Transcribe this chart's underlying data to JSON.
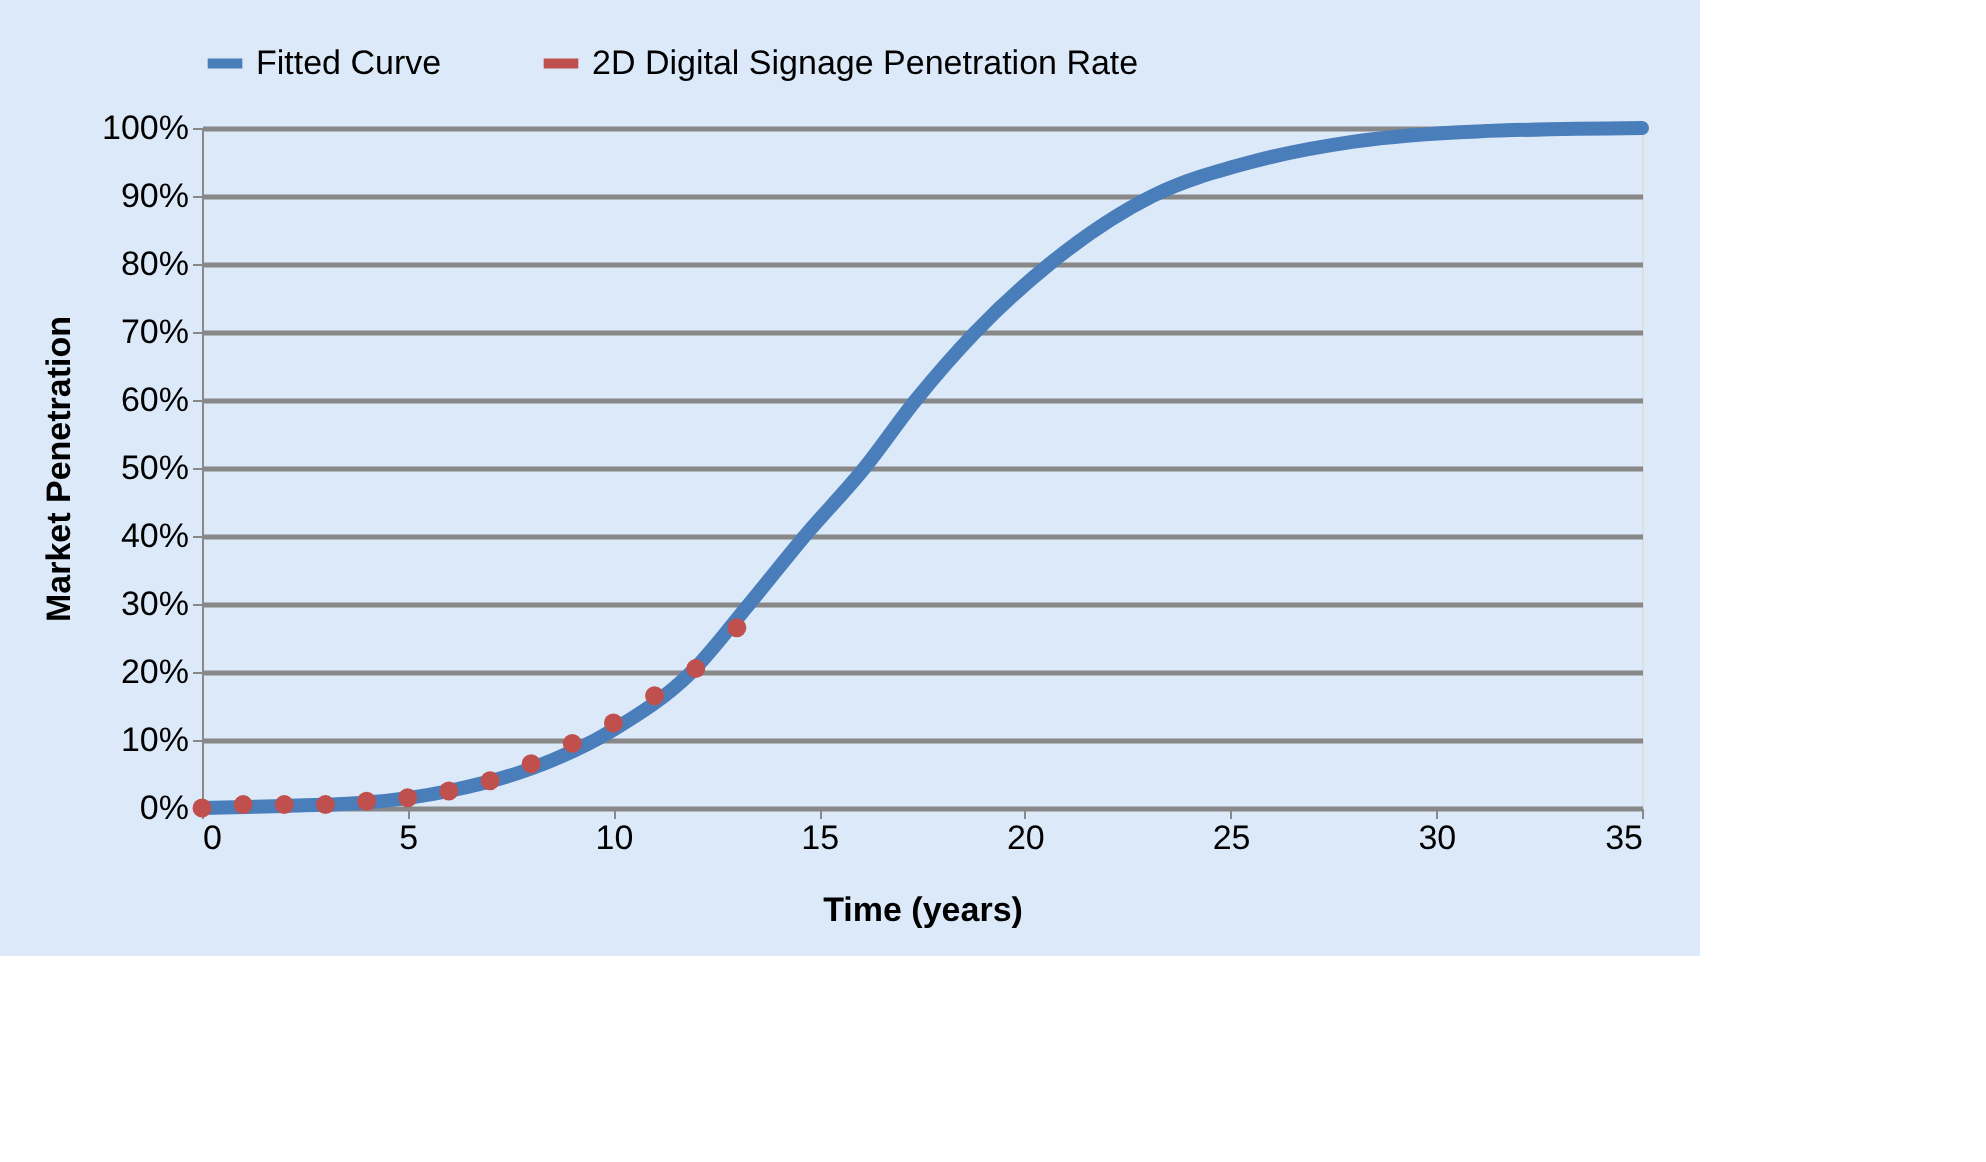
{
  "chart_data": {
    "type": "line",
    "xlabel": "Time (years)",
    "ylabel": "Market Penetration",
    "series": [
      {
        "name": "Fitted Curve",
        "type": "line",
        "color": "#4a7ebb",
        "marker": "none",
        "x": [
          0,
          2,
          4,
          6,
          8,
          10,
          11.9,
          13.3,
          14.65,
          16.1,
          17.35,
          18.8,
          20.6,
          23.1,
          25.5,
          28,
          31,
          35
        ],
        "values": [
          0,
          0.3,
          0.8,
          2.5,
          5.8,
          11.5,
          20,
          30,
          40,
          50,
          60,
          70,
          80,
          90,
          95,
          98,
          99.5,
          100
        ]
      },
      {
        "name": "2D Digital Signage Penetration Rate",
        "type": "scatter",
        "color": "#c0504d",
        "marker": "circle",
        "x": [
          0,
          1,
          2,
          3,
          4,
          5,
          6,
          7,
          8,
          9,
          10,
          11,
          12,
          13
        ],
        "values": [
          0,
          0.5,
          0.5,
          0.5,
          1,
          1.5,
          2.5,
          4,
          6.5,
          9.5,
          12.5,
          16.5,
          20.5,
          26.5
        ]
      }
    ],
    "xlim": [
      0,
      35
    ],
    "xticks": [
      0,
      5,
      10,
      15,
      20,
      25,
      30,
      35
    ],
    "ylim": [
      0,
      100
    ],
    "yticks": [
      {
        "value": 0,
        "label": "0%"
      },
      {
        "value": 10,
        "label": "10%"
      },
      {
        "value": 20,
        "label": "20%"
      },
      {
        "value": 30,
        "label": "30%"
      },
      {
        "value": 40,
        "label": "40%"
      },
      {
        "value": 50,
        "label": "50%"
      },
      {
        "value": 60,
        "label": "60%"
      },
      {
        "value": 70,
        "label": "70%"
      },
      {
        "value": 80,
        "label": "80%"
      },
      {
        "value": 90,
        "label": "90%"
      },
      {
        "value": 100,
        "label": "100%"
      }
    ],
    "grid": "y",
    "legend": "top"
  }
}
